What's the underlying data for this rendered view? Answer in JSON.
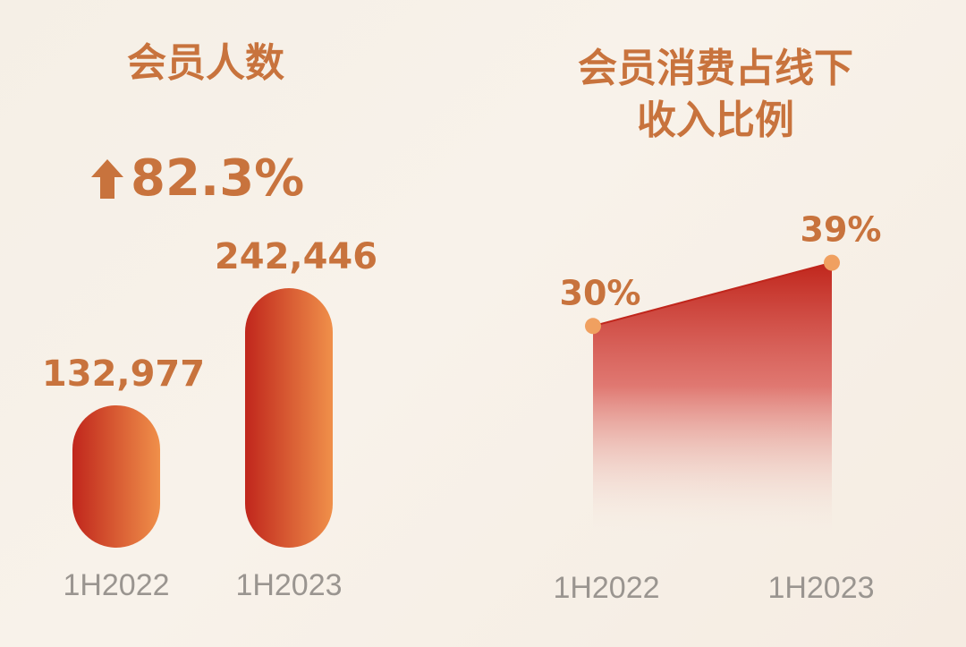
{
  "chart_data": [
    {
      "type": "bar",
      "title": "会员人数",
      "growth": "82.3%",
      "growth_icon": "arrow-up-icon",
      "categories": [
        "1H2022",
        "1H2023"
      ],
      "values": [
        132977,
        242446
      ],
      "value_labels": [
        "132,977",
        "242,446"
      ],
      "ylim": [
        0,
        242446
      ],
      "colors": {
        "bar_start": "#c0261c",
        "bar_end": "#f0904a",
        "label": "#c8733d",
        "category": "#9a9590"
      }
    },
    {
      "type": "area",
      "title": "会员消费占线下收入比例",
      "categories": [
        "1H2022",
        "1H2023"
      ],
      "values": [
        30,
        39
      ],
      "value_labels": [
        "30%",
        "39%"
      ],
      "ylim": [
        0,
        42
      ],
      "colors": {
        "area_top": "#c0261c",
        "point": "#f0a060",
        "label": "#c8733d",
        "category": "#9a9590"
      }
    }
  ]
}
